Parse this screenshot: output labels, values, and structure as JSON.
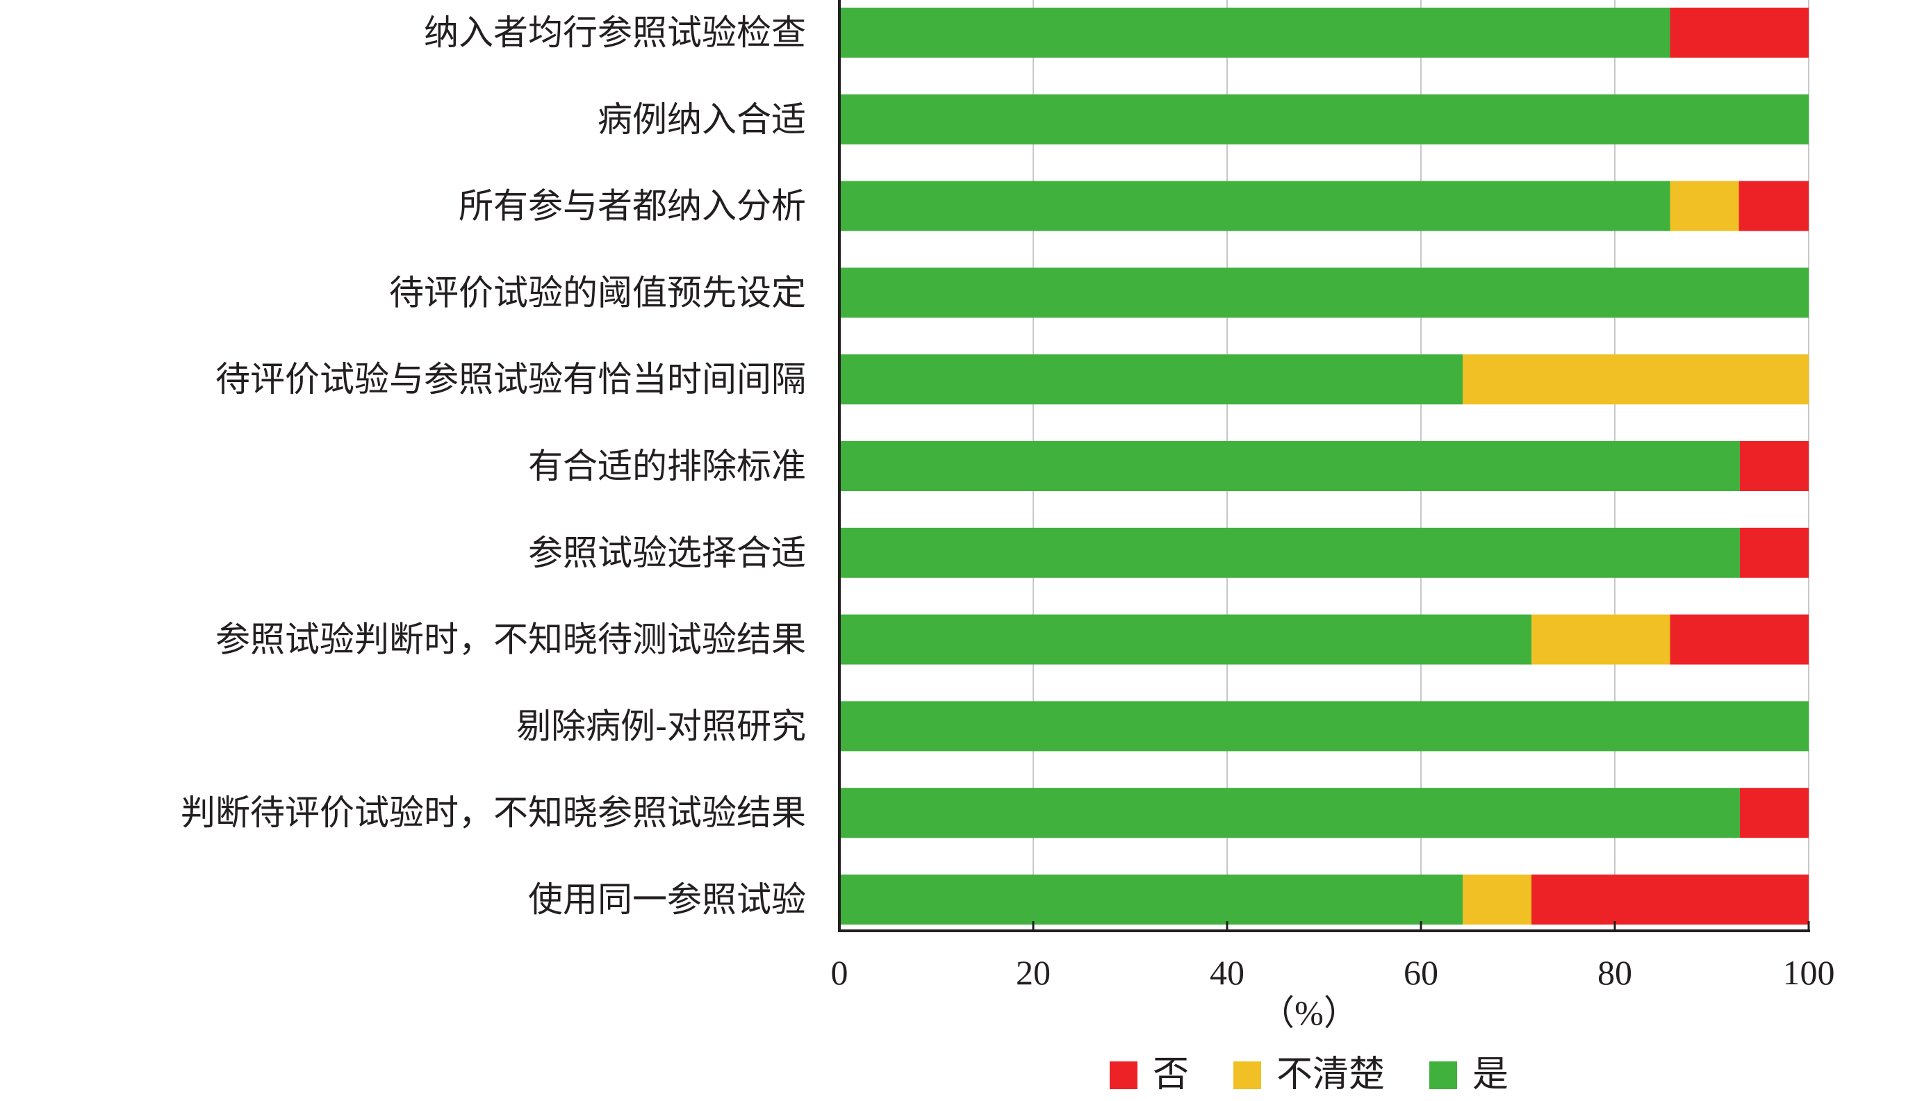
{
  "chart_data": {
    "type": "bar",
    "orientation": "horizontal",
    "stacked": true,
    "categories": [
      "纳入者均行参照试验检查",
      "病例纳入合适",
      "所有参与者都纳入分析",
      "待评价试验的阈值预先设定",
      "待评价试验与参照试验有恰当时间间隔",
      "有合适的排除标准",
      "参照试验选择合适",
      "参照试验判断时，不知晓待测试验结果",
      "剔除病例-对照研究",
      "判断待评价试验时，不知晓参照试验结果",
      "使用同一参照试验"
    ],
    "series": [
      {
        "name": "是",
        "color": "#3fb13c",
        "values": [
          85.7,
          100,
          85.7,
          100,
          64.3,
          92.9,
          92.9,
          71.4,
          100,
          92.9,
          64.3
        ]
      },
      {
        "name": "不清楚",
        "color": "#f0c024",
        "values": [
          0,
          0,
          7.1,
          0,
          35.7,
          0,
          0,
          14.3,
          0,
          0,
          7.1
        ]
      },
      {
        "name": "否",
        "color": "#ed2227",
        "values": [
          14.3,
          0,
          7.2,
          0,
          0,
          7.1,
          7.1,
          14.3,
          0,
          7.1,
          28.6
        ]
      }
    ],
    "legend_order": [
      "否",
      "不清楚",
      "是"
    ],
    "legend_position": "bottom",
    "xlim": [
      0,
      100
    ],
    "xticks": [
      0,
      20,
      40,
      60,
      80,
      100
    ],
    "xlabel": "（%）",
    "grid": true
  }
}
